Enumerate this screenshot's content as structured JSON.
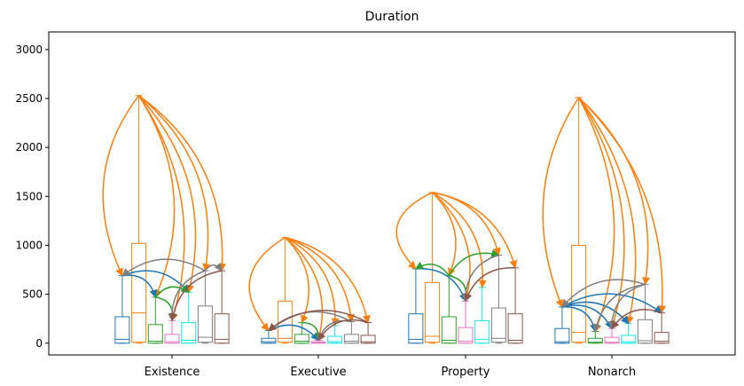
{
  "chart_data": {
    "type": "box",
    "title": "Duration",
    "xlabel": "",
    "ylabel": "",
    "categories": [
      "Existence",
      "Executive",
      "Property",
      "Nonarch"
    ],
    "ylim": [
      -120,
      3180
    ],
    "yticks": [
      0,
      500,
      1000,
      1500,
      2000,
      2500,
      3000
    ],
    "grid": false,
    "series_colors": [
      "#1f77b4",
      "#ff7f0e",
      "#2ca02c",
      "#e377c2",
      "#17e8e8",
      "#7f7f7f",
      "#8c564b"
    ],
    "groups": [
      {
        "category": "Existence",
        "boxes": [
          {
            "q1": 0,
            "median": 40,
            "q3": 270,
            "whisker_low": 0,
            "whisker_high": 690
          },
          {
            "q1": 10,
            "median": 310,
            "q3": 1020,
            "whisker_low": 0,
            "whisker_high": 2530
          },
          {
            "q1": 0,
            "median": 20,
            "q3": 190,
            "whisker_low": 0,
            "whisker_high": 470
          },
          {
            "q1": 0,
            "median": 15,
            "q3": 90,
            "whisker_low": 0,
            "whisker_high": 230
          },
          {
            "q1": 0,
            "median": 30,
            "q3": 210,
            "whisker_low": 0,
            "whisker_high": 520
          },
          {
            "q1": 10,
            "median": 60,
            "q3": 380,
            "whisker_low": 0,
            "whisker_high": 740
          },
          {
            "q1": 0,
            "median": 40,
            "q3": 300,
            "whisker_low": 0,
            "whisker_high": 740
          }
        ],
        "arrows": [
          {
            "from": 1,
            "to": 0,
            "color": "#ff7f0e"
          },
          {
            "from": 1,
            "to": 2,
            "color": "#ff7f0e"
          },
          {
            "from": 1,
            "to": 3,
            "color": "#ff7f0e"
          },
          {
            "from": 1,
            "to": 4,
            "color": "#ff7f0e"
          },
          {
            "from": 1,
            "to": 5,
            "color": "#ff7f0e"
          },
          {
            "from": 1,
            "to": 6,
            "color": "#ff7f0e"
          },
          {
            "from": 0,
            "to": 2,
            "color": "#1f77b4"
          },
          {
            "from": 0,
            "to": 4,
            "color": "#1f77b4"
          },
          {
            "from": 2,
            "to": 3,
            "color": "#2ca02c"
          },
          {
            "from": 2,
            "to": 4,
            "color": "#2ca02c"
          },
          {
            "from": 5,
            "to": 0,
            "color": "#7f7f7f"
          },
          {
            "from": 5,
            "to": 3,
            "color": "#7f7f7f"
          },
          {
            "from": 5,
            "to": 6,
            "color": "#7f7f7f"
          },
          {
            "from": 6,
            "to": 3,
            "color": "#8c564b"
          }
        ]
      },
      {
        "category": "Executive",
        "boxes": [
          {
            "q1": 0,
            "median": 15,
            "q3": 50,
            "whisker_low": 0,
            "whisker_high": 130
          },
          {
            "q1": 10,
            "median": 50,
            "q3": 430,
            "whisker_low": 0,
            "whisker_high": 1080
          },
          {
            "q1": 0,
            "median": 20,
            "q3": 90,
            "whisker_low": 0,
            "whisker_high": 210
          },
          {
            "q1": 0,
            "median": 5,
            "q3": 15,
            "whisker_low": 0,
            "whisker_high": 30
          },
          {
            "q1": 0,
            "median": 15,
            "q3": 70,
            "whisker_low": 0,
            "whisker_high": 180
          },
          {
            "q1": 0,
            "median": 20,
            "q3": 90,
            "whisker_low": 0,
            "whisker_high": 220
          },
          {
            "q1": 0,
            "median": 15,
            "q3": 80,
            "whisker_low": 0,
            "whisker_high": 210
          }
        ],
        "arrows": [
          {
            "from": 1,
            "to": 0,
            "color": "#ff7f0e"
          },
          {
            "from": 1,
            "to": 2,
            "color": "#ff7f0e"
          },
          {
            "from": 1,
            "to": 3,
            "color": "#ff7f0e"
          },
          {
            "from": 1,
            "to": 4,
            "color": "#ff7f0e"
          },
          {
            "from": 1,
            "to": 5,
            "color": "#ff7f0e"
          },
          {
            "from": 1,
            "to": 6,
            "color": "#ff7f0e"
          },
          {
            "from": 0,
            "to": 3,
            "color": "#1f77b4"
          },
          {
            "from": 2,
            "to": 3,
            "color": "#2ca02c"
          },
          {
            "from": 5,
            "to": 0,
            "color": "#7f7f7f"
          },
          {
            "from": 5,
            "to": 3,
            "color": "#7f7f7f"
          },
          {
            "from": 6,
            "to": 0,
            "color": "#8c564b"
          },
          {
            "from": 6,
            "to": 3,
            "color": "#8c564b"
          }
        ]
      },
      {
        "category": "Property",
        "boxes": [
          {
            "q1": 0,
            "median": 40,
            "q3": 300,
            "whisker_low": 0,
            "whisker_high": 760
          },
          {
            "q1": 10,
            "median": 70,
            "q3": 620,
            "whisker_low": 0,
            "whisker_high": 1540
          },
          {
            "q1": 0,
            "median": 30,
            "q3": 270,
            "whisker_low": 0,
            "whisker_high": 690
          },
          {
            "q1": 0,
            "median": 20,
            "q3": 160,
            "whisker_low": 0,
            "whisker_high": 430
          },
          {
            "q1": 0,
            "median": 40,
            "q3": 230,
            "whisker_low": 0,
            "whisker_high": 570
          },
          {
            "q1": 10,
            "median": 50,
            "q3": 360,
            "whisker_low": 0,
            "whisker_high": 900
          },
          {
            "q1": 0,
            "median": 30,
            "q3": 300,
            "whisker_low": 0,
            "whisker_high": 770
          }
        ],
        "arrows": [
          {
            "from": 1,
            "to": 0,
            "color": "#ff7f0e"
          },
          {
            "from": 1,
            "to": 2,
            "color": "#ff7f0e"
          },
          {
            "from": 1,
            "to": 3,
            "color": "#ff7f0e"
          },
          {
            "from": 1,
            "to": 4,
            "color": "#ff7f0e"
          },
          {
            "from": 1,
            "to": 5,
            "color": "#ff7f0e"
          },
          {
            "from": 1,
            "to": 6,
            "color": "#ff7f0e"
          },
          {
            "from": 0,
            "to": 3,
            "color": "#1f77b4"
          },
          {
            "from": 2,
            "to": 0,
            "color": "#2ca02c"
          },
          {
            "from": 2,
            "to": 3,
            "color": "#2ca02c"
          },
          {
            "from": 2,
            "to": 5,
            "color": "#2ca02c"
          },
          {
            "from": 5,
            "to": 3,
            "color": "#7f7f7f"
          },
          {
            "from": 6,
            "to": 3,
            "color": "#8c564b"
          }
        ]
      },
      {
        "category": "Nonarch",
        "boxes": [
          {
            "q1": 0,
            "median": 15,
            "q3": 150,
            "whisker_low": 0,
            "whisker_high": 370
          },
          {
            "q1": 10,
            "median": 110,
            "q3": 1000,
            "whisker_low": 0,
            "whisker_high": 2510
          },
          {
            "q1": 0,
            "median": 10,
            "q3": 50,
            "whisker_low": 0,
            "whisker_high": 120
          },
          {
            "q1": 0,
            "median": 10,
            "q3": 60,
            "whisker_low": 0,
            "whisker_high": 150
          },
          {
            "q1": 0,
            "median": 15,
            "q3": 80,
            "whisker_low": 0,
            "whisker_high": 200
          },
          {
            "q1": 0,
            "median": 25,
            "q3": 240,
            "whisker_low": 0,
            "whisker_high": 600
          },
          {
            "q1": 0,
            "median": 20,
            "q3": 110,
            "whisker_low": 0,
            "whisker_high": 310
          }
        ],
        "arrows": [
          {
            "from": 1,
            "to": 0,
            "color": "#ff7f0e"
          },
          {
            "from": 1,
            "to": 2,
            "color": "#ff7f0e"
          },
          {
            "from": 1,
            "to": 3,
            "color": "#ff7f0e"
          },
          {
            "from": 1,
            "to": 4,
            "color": "#ff7f0e"
          },
          {
            "from": 1,
            "to": 5,
            "color": "#ff7f0e"
          },
          {
            "from": 1,
            "to": 6,
            "color": "#ff7f0e"
          },
          {
            "from": 0,
            "to": 2,
            "color": "#1f77b4"
          },
          {
            "from": 0,
            "to": 3,
            "color": "#1f77b4"
          },
          {
            "from": 0,
            "to": 4,
            "color": "#1f77b4"
          },
          {
            "from": 0,
            "to": 6,
            "color": "#1f77b4"
          },
          {
            "from": 5,
            "to": 0,
            "color": "#7f7f7f"
          },
          {
            "from": 5,
            "to": 2,
            "color": "#7f7f7f"
          },
          {
            "from": 5,
            "to": 3,
            "color": "#7f7f7f"
          },
          {
            "from": 6,
            "to": 3,
            "color": "#8c564b"
          }
        ]
      }
    ]
  }
}
